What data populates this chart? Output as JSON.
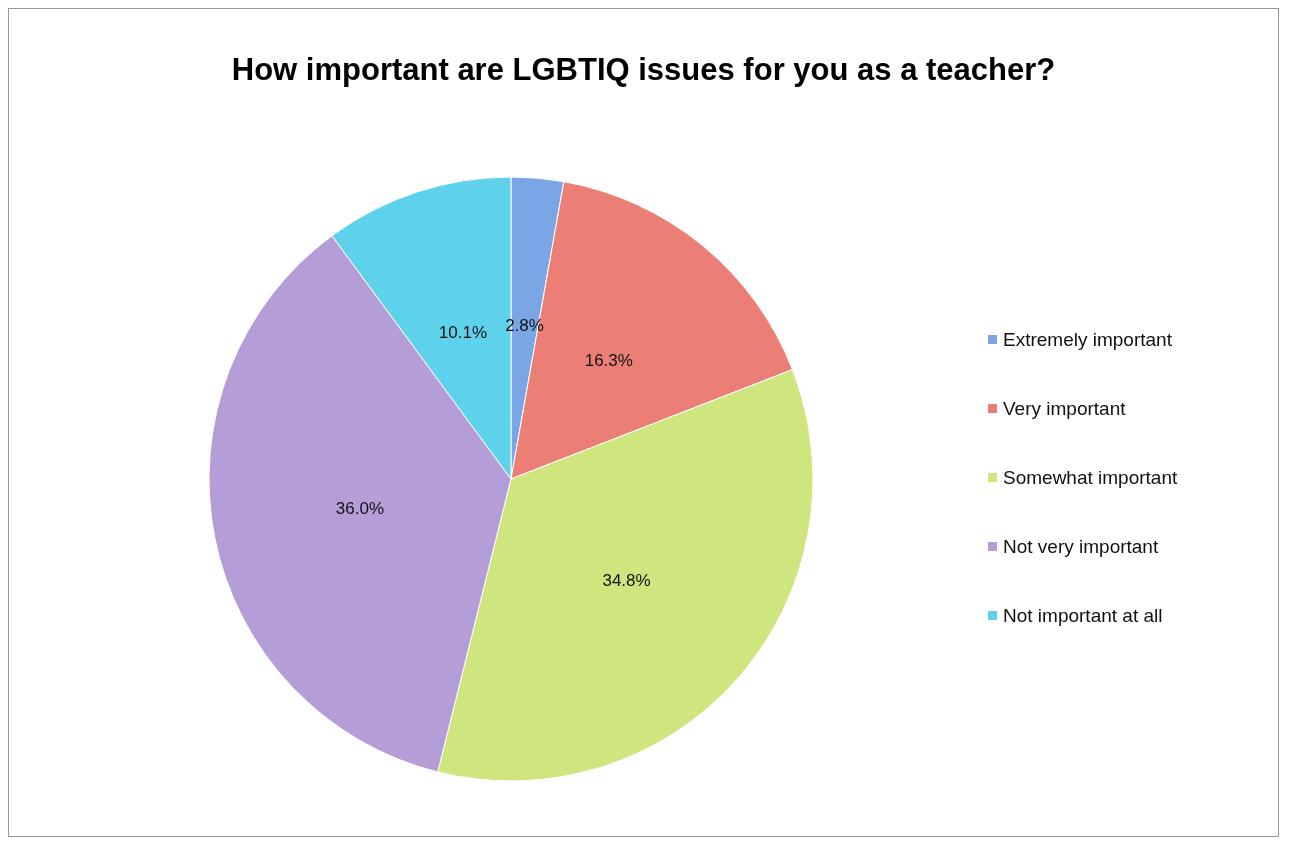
{
  "chart_data": {
    "type": "pie",
    "title": "How important are LGBTIQ issues for you as a teacher?",
    "categories": [
      "Extremely important",
      "Very important",
      "Somewhat important",
      "Not very important",
      "Not important at all"
    ],
    "values": [
      2.8,
      16.3,
      34.8,
      36.0,
      10.1
    ],
    "value_labels": [
      "2.8%",
      "16.3%",
      "34.8%",
      "36.0%",
      "10.1%"
    ],
    "colors": [
      "#7ba6e6",
      "#ec7f75",
      "#cfe67f",
      "#b59dd8",
      "#5fd2eb"
    ],
    "legend": "right"
  }
}
